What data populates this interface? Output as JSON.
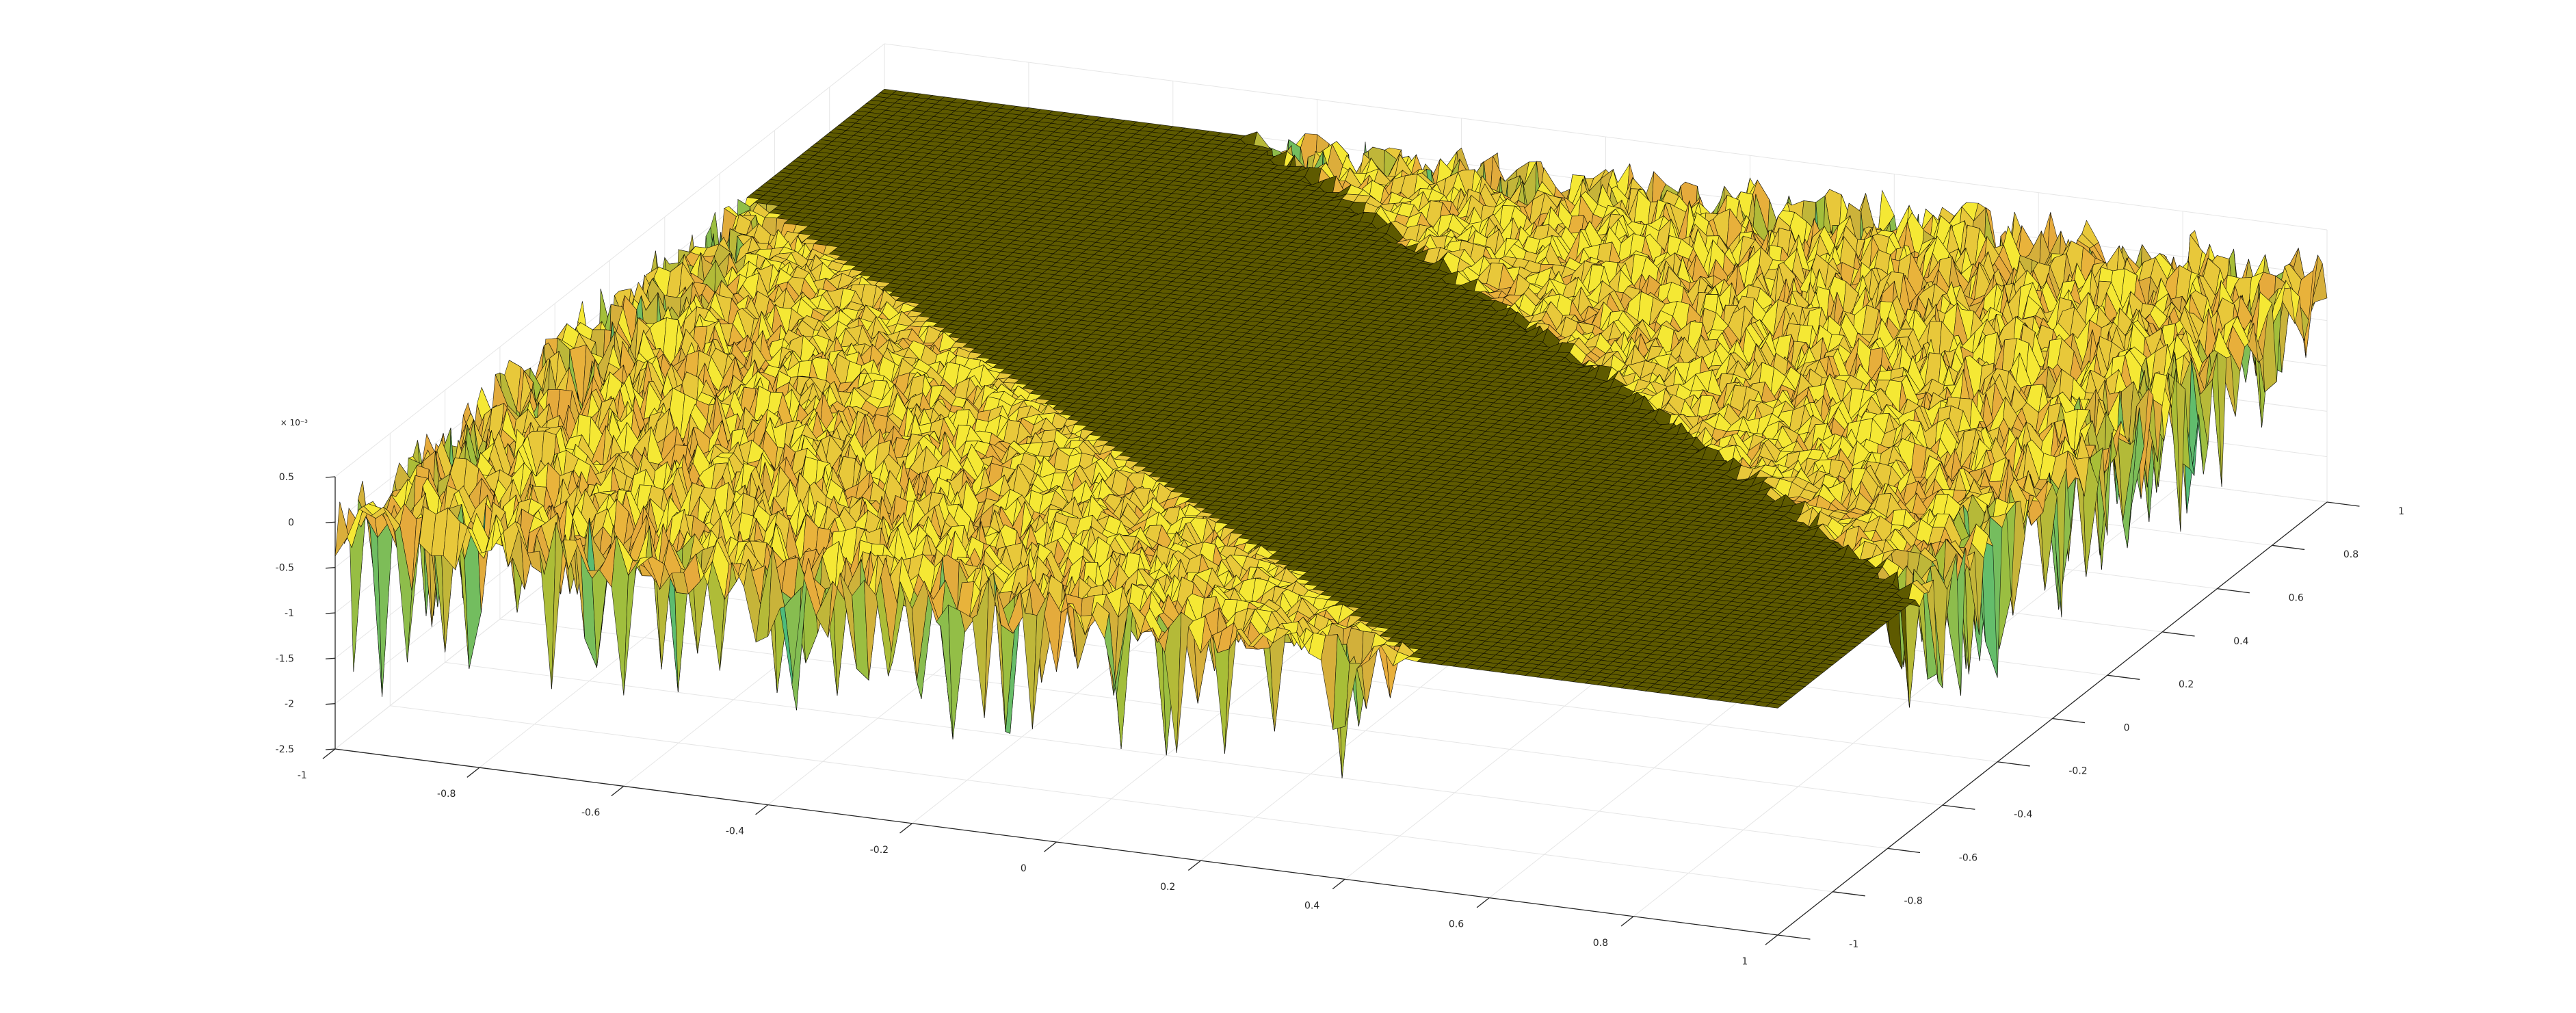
{
  "chart_data": {
    "type": "surface",
    "title": "",
    "xlabel": "",
    "ylabel": "",
    "zlabel": "",
    "x_ticks": [
      "-1",
      "-0.8",
      "-0.6",
      "-0.4",
      "-0.2",
      "0",
      "0.2",
      "0.4",
      "0.6",
      "0.8",
      "1"
    ],
    "y_ticks": [
      "-1",
      "-0.8",
      "-0.6",
      "-0.4",
      "-0.2",
      "0",
      "0.2",
      "0.4",
      "0.6",
      "0.8",
      "1"
    ],
    "z_ticks": [
      "-2.5",
      "-2",
      "-1.5",
      "-1",
      "-0.5",
      "0",
      "0.5"
    ],
    "z_exponent": "× 10⁻³",
    "xlim": [
      -1,
      1
    ],
    "ylim": [
      -1,
      1
    ],
    "zlim": [
      -0.0025,
      0.0005
    ],
    "grid": true,
    "colormap": "parula",
    "surface_description_values": {
      "flat_band_value": 0,
      "noise_band_boundary_x_plus_y": [
        0.5,
        -0.5
      ],
      "min_z": -0.0023,
      "max_z": 0.0002
    },
    "colors": {
      "flat": "#5e5a00",
      "edge_line": "#000000",
      "yellow": "#f5e834",
      "orange": "#e6a93c",
      "teal": "#2aa79a",
      "blue": "#3b3fd6",
      "axis": "#262626",
      "grid": "#e6e6e6"
    }
  }
}
